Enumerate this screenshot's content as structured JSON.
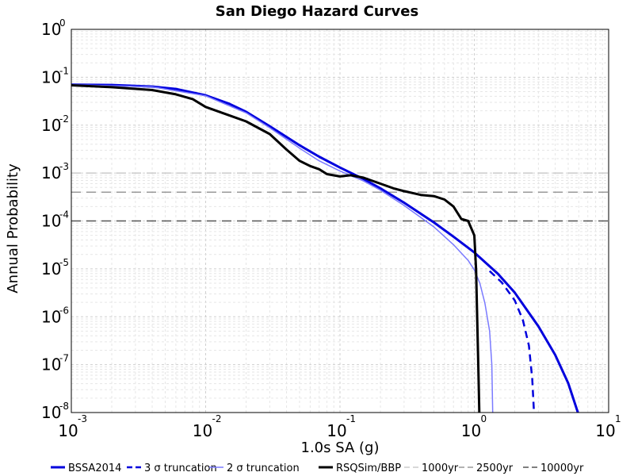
{
  "chart_data": {
    "type": "line",
    "title": "San Diego Hazard Curves",
    "xlabel": "1.0s SA (g)",
    "ylabel": "Annual Probability",
    "x_scale": "log",
    "y_scale": "log",
    "xlim": [
      0.001,
      10
    ],
    "ylim": [
      1e-08,
      1
    ],
    "grid": true,
    "legend_position": "bottom",
    "x_ticks": [
      {
        "base": "10",
        "exp": "-3"
      },
      {
        "base": "10",
        "exp": "-2"
      },
      {
        "base": "10",
        "exp": "-1"
      },
      {
        "base": "10",
        "exp": "0"
      },
      {
        "base": "10",
        "exp": "1"
      }
    ],
    "y_ticks": [
      {
        "base": "10",
        "exp": "0"
      },
      {
        "base": "10",
        "exp": "-1"
      },
      {
        "base": "10",
        "exp": "-2"
      },
      {
        "base": "10",
        "exp": "-3"
      },
      {
        "base": "10",
        "exp": "-4"
      },
      {
        "base": "10",
        "exp": "-5"
      },
      {
        "base": "10",
        "exp": "-6"
      },
      {
        "base": "10",
        "exp": "-7"
      },
      {
        "base": "10",
        "exp": "-8"
      }
    ],
    "series": [
      {
        "name": "BSSA2014",
        "color": "#0000dd",
        "dash": "solid",
        "width": 3,
        "x": [
          0.001,
          0.002,
          0.004,
          0.006,
          0.01,
          0.015,
          0.02,
          0.03,
          0.05,
          0.07,
          0.1,
          0.15,
          0.2,
          0.3,
          0.5,
          0.7,
          1.0,
          1.5,
          2.0,
          3.0,
          4.0,
          5.0,
          5.9
        ],
        "y": [
          0.07,
          0.069,
          0.064,
          0.057,
          0.042,
          0.028,
          0.019,
          0.0095,
          0.0038,
          0.0022,
          0.0013,
          0.00075,
          0.00048,
          0.00024,
          9.3e-05,
          4.7e-05,
          2.2e-05,
          7.9e-06,
          3.2e-06,
          6.3e-07,
          1.6e-07,
          4.1e-08,
          1e-08
        ]
      },
      {
        "name": "3 σ truncation",
        "color": "#0000dd",
        "dash": "dashed",
        "width": 2.5,
        "x": [
          1.3,
          1.6,
          2.0,
          2.3,
          2.55,
          2.7,
          2.78
        ],
        "y": [
          9e-06,
          5.2e-06,
          2.2e-06,
          8.5e-07,
          2.5e-07,
          5e-08,
          1e-08
        ]
      },
      {
        "name": "2 σ truncation",
        "color": "#7a7aff",
        "dash": "solid",
        "width": 1.5,
        "x": [
          0.001,
          0.004,
          0.01,
          0.02,
          0.03,
          0.05,
          0.07,
          0.1,
          0.15,
          0.2,
          0.3,
          0.5,
          0.7,
          0.9,
          1.0,
          1.1,
          1.2,
          1.3,
          1.35,
          1.37
        ],
        "y": [
          0.07,
          0.063,
          0.041,
          0.018,
          0.0088,
          0.0033,
          0.0018,
          0.0011,
          0.00068,
          0.00044,
          0.00021,
          7.5e-05,
          3.2e-05,
          1.5e-05,
          9.5e-06,
          5e-06,
          1.9e-06,
          5e-07,
          1e-07,
          1e-08
        ]
      },
      {
        "name": "RSQSim/BBP",
        "color": "#000000",
        "dash": "solid",
        "width": 3,
        "x": [
          0.001,
          0.002,
          0.004,
          0.006,
          0.008,
          0.01,
          0.015,
          0.02,
          0.03,
          0.04,
          0.05,
          0.06,
          0.07,
          0.08,
          0.1,
          0.12,
          0.15,
          0.2,
          0.25,
          0.3,
          0.4,
          0.5,
          0.6,
          0.7,
          0.8,
          0.9,
          1.0,
          1.03,
          1.05,
          1.07,
          1.08,
          1.09
        ],
        "y": [
          0.068,
          0.062,
          0.054,
          0.044,
          0.035,
          0.024,
          0.016,
          0.012,
          0.0065,
          0.0031,
          0.0018,
          0.0014,
          0.0012,
          0.00095,
          0.00085,
          0.0009,
          0.0008,
          0.0006,
          0.00048,
          0.00042,
          0.00035,
          0.00033,
          0.00028,
          0.0002,
          0.00011,
          0.0001,
          5e-05,
          1e-05,
          1e-06,
          1e-07,
          3e-08,
          1e-08
        ]
      },
      {
        "name": "1000yr",
        "color": "#cccccc",
        "dash": "longdash",
        "width": 1.5,
        "x": [
          0.001,
          10
        ],
        "y": [
          0.001,
          0.001
        ]
      },
      {
        "name": "2500yr",
        "color": "#999999",
        "dash": "longdash",
        "width": 1.5,
        "x": [
          0.001,
          10
        ],
        "y": [
          0.0004,
          0.0004
        ]
      },
      {
        "name": "10000yr",
        "color": "#555555",
        "dash": "longdash",
        "width": 1.5,
        "x": [
          0.001,
          10
        ],
        "y": [
          0.0001,
          0.0001
        ]
      }
    ]
  }
}
